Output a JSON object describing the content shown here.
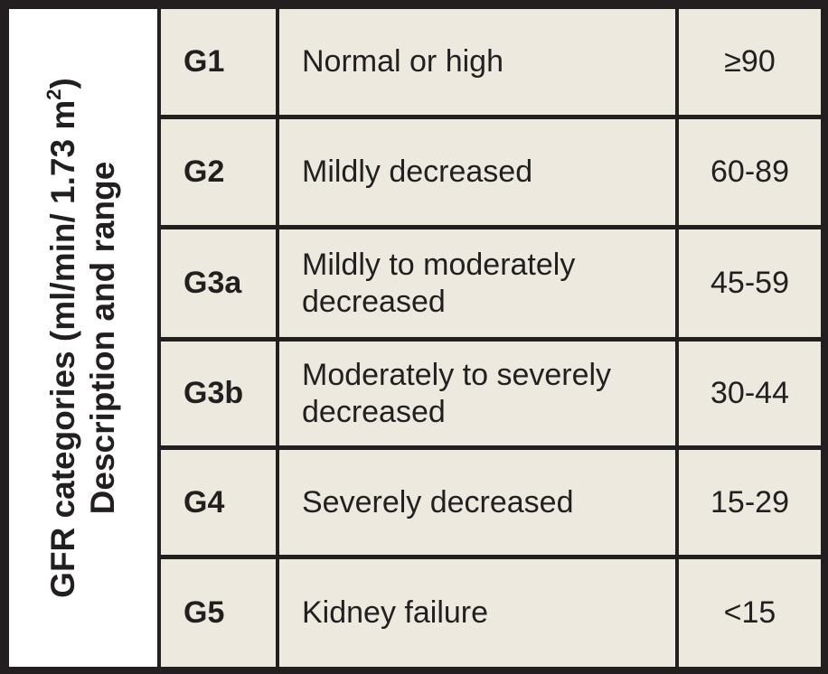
{
  "header": {
    "line1_prefix": "GFR categories (ml/min/ 1.73 m",
    "line1_sup": "2",
    "line1_suffix": ")",
    "line2": "Description and range"
  },
  "rows": [
    {
      "code": "G1",
      "description": "Normal or high",
      "range": "≥90"
    },
    {
      "code": "G2",
      "description": "Mildly decreased",
      "range": "60-89"
    },
    {
      "code": "G3a",
      "description": "Mildly to moderately decreased",
      "range": "45-59"
    },
    {
      "code": "G3b",
      "description": "Moderately to severely decreased",
      "range": "30-44"
    },
    {
      "code": "G4",
      "description": "Severely decreased",
      "range": "15-29"
    },
    {
      "code": "G5",
      "description": "Kidney failure",
      "range": "<15"
    }
  ],
  "colors": {
    "border": "#231f20",
    "cell_background": "#ede9df",
    "header_background": "#ffffff",
    "text": "#231f20"
  }
}
